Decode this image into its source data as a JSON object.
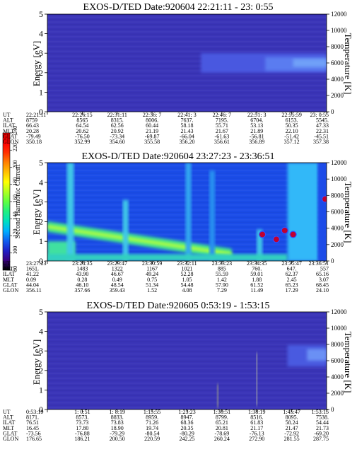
{
  "colorbar": {
    "label": "Second Harmonic Current",
    "ticks": [
      "80",
      "100",
      "120",
      "140",
      "160",
      "180",
      "200",
      "220",
      "240"
    ],
    "min": 80,
    "max": 240,
    "colors": [
      "#000000",
      "#3a0080",
      "#2020c8",
      "#1060f0",
      "#00b0ff",
      "#00e0c0",
      "#20f080",
      "#60ff40",
      "#b0ff20",
      "#ffff00",
      "#ffc000",
      "#ff8000",
      "#ff3000",
      "#ff0000",
      "#e00000"
    ]
  },
  "row_labels": [
    "UT",
    "ALT",
    "ILAT",
    "MLT",
    "GLAT",
    "GLON"
  ],
  "chart_data": [
    {
      "type": "heatmap",
      "title": "EXOS-D/TED   Date:920604  22:21:11 - 23: 0:55",
      "ylabel": "Energy [eV]",
      "ylabel_right": "Temperature [K]",
      "ylim": [
        0,
        5
      ],
      "yticks": [
        "0",
        "1",
        "2",
        "3",
        "4",
        "5"
      ],
      "ylim_right": [
        0,
        12000
      ],
      "yticks_right": [
        "0",
        "2000",
        "4000",
        "6000",
        "8000",
        "10000",
        "12000"
      ],
      "base_color": "#3a34b8",
      "columns": [
        [
          "22:21:11",
          "8759",
          "66.43",
          "20.28",
          "-79.49",
          "350.18"
        ],
        [
          "22:26:15",
          "8565",
          "64.54",
          "20.62",
          "-76.50",
          "352.99"
        ],
        [
          "22:31:11",
          "8315.",
          "62.56",
          "20.92",
          "-73.34",
          "354.60"
        ],
        [
          "22:36: 7",
          "8006.",
          "60.44",
          "21.19",
          "-69.87",
          "355.58"
        ],
        [
          "22:41: 3",
          "7637.",
          "58.18",
          "21.43",
          "-66.04",
          "356.20"
        ],
        [
          "22:46: 7",
          "7195.",
          "55.71",
          "21.67",
          "-61.63",
          "356.61"
        ],
        [
          "22:51: 3",
          "6704.",
          "53.13",
          "21.89",
          "-56.81",
          "356.89"
        ],
        [
          "22:55:59",
          "6153.",
          "50.35",
          "22.10",
          "-51.42",
          "357.12"
        ],
        [
          "23: 0:55",
          "5545.",
          "47.33",
          "22.31",
          "-45.51",
          "357.38"
        ]
      ],
      "features": [
        {
          "kind": "band",
          "x_from": 0.55,
          "x_to": 1.0,
          "e_from": 2.0,
          "e_to": 3.0,
          "color": "#4a58e0"
        },
        {
          "kind": "band",
          "x_from": 0.78,
          "x_to": 1.0,
          "e_from": 2.1,
          "e_to": 2.8,
          "color": "#5a7cf0"
        },
        {
          "kind": "band",
          "x_from": 0.88,
          "x_to": 1.0,
          "e_from": 2.3,
          "e_to": 2.7,
          "color": "#70a0f8"
        }
      ]
    },
    {
      "type": "heatmap",
      "title": "EXOS-D/TED   Date:920604  23:27:23 - 23:36:51",
      "ylabel": "Energy [eV]",
      "ylabel_right": "Temperature [K]",
      "ylim": [
        0,
        5
      ],
      "yticks": [
        "0",
        "1",
        "2",
        "3",
        "4",
        "5"
      ],
      "ylim_right": [
        0,
        12000
      ],
      "yticks_right": [
        "0",
        "2000",
        "4000",
        "6000",
        "8000",
        "10000",
        "12000"
      ],
      "base_color": "#1a4ce8",
      "columns": [
        [
          "23:27:23",
          "1651.",
          "41.22",
          "0.09",
          "44.04",
          "356.11"
        ],
        [
          "23:28:35",
          "1483",
          "43.90",
          "0.28",
          "46.10",
          "357.66"
        ],
        [
          "23:29:47",
          "1322",
          "46.67",
          "0.49",
          "48.54",
          "359.43"
        ],
        [
          "23:30:59",
          "1167",
          "49.24",
          "0.75",
          "51.34",
          "1.52"
        ],
        [
          "23:32:11",
          "1021",
          "52.28",
          "1.05",
          "54.48",
          "4.08"
        ],
        [
          "23:33:23",
          "885",
          "55.59",
          "1.42",
          "57.90",
          "7.29"
        ],
        [
          "23:34:35",
          "760.",
          "59.01",
          "1.88",
          "61.52",
          "11.49"
        ],
        [
          "23:35:47",
          "647.",
          "62.37",
          "2.45",
          "65.23",
          "17.29"
        ],
        [
          "23:36:51",
          "557",
          "65.16",
          "3.07",
          "68.45",
          "24.10"
        ]
      ],
      "features": [
        {
          "kind": "band",
          "x_from": 0.86,
          "x_to": 0.97,
          "e_from": 0.0,
          "e_to": 5.0,
          "color": "#30b8f8"
        },
        {
          "kind": "band",
          "x_from": 0.97,
          "x_to": 1.0,
          "e_from": 0.0,
          "e_to": 5.0,
          "color": "#1a4ce8"
        },
        {
          "kind": "band",
          "x_from": 0.0,
          "x_to": 0.1,
          "e_from": 0.0,
          "e_to": 1.0,
          "color": "#40e0a0"
        },
        {
          "kind": "line",
          "x0": 0.0,
          "e0": 1.75,
          "x1": 0.66,
          "e1": 0.35,
          "width_e": 0.55,
          "color": "#40e090"
        },
        {
          "kind": "line",
          "x0": 0.0,
          "e0": 1.75,
          "x1": 0.66,
          "e1": 0.35,
          "width_e": 0.18,
          "color": "#b0ff40"
        },
        {
          "kind": "band",
          "x_from": 0.07,
          "x_to": 0.095,
          "e_from": 0.0,
          "e_to": 5.0,
          "color": "#40c8e8"
        },
        {
          "kind": "band",
          "x_from": 0.27,
          "x_to": 0.29,
          "e_from": 0.0,
          "e_to": 3.1,
          "color": "#40c8e8"
        },
        {
          "kind": "band",
          "x_from": 0.495,
          "x_to": 0.515,
          "e_from": 0.0,
          "e_to": 5.0,
          "color": "#30a8f0"
        },
        {
          "kind": "band",
          "x_from": 0.58,
          "x_to": 0.6,
          "e_from": 0.0,
          "e_to": 4.6,
          "color": "#2890f0"
        },
        {
          "kind": "band",
          "x_from": 0.75,
          "x_to": 0.77,
          "e_from": 0.0,
          "e_to": 1.6,
          "color": "#40c8e8"
        },
        {
          "kind": "band",
          "x_from": 0.0,
          "x_to": 0.86,
          "e_from": 0.0,
          "e_to": 0.35,
          "color": "#30d0c0"
        },
        {
          "kind": "point",
          "x": 0.77,
          "e": 1.35,
          "color": "#c00030"
        },
        {
          "kind": "point",
          "x": 0.82,
          "e": 1.1,
          "color": "#c00030"
        },
        {
          "kind": "point",
          "x": 0.88,
          "e": 1.35,
          "color": "#c00030"
        },
        {
          "kind": "point",
          "x": 0.85,
          "e": 1.55,
          "color": "#c00030"
        },
        {
          "kind": "point",
          "x": 0.995,
          "e": 3.15,
          "color": "#c00030"
        }
      ]
    },
    {
      "type": "heatmap",
      "title": "EXOS-D/TED   Date:920605  0:53:19 - 1:53:15",
      "ylabel": "Energy [eV]",
      "ylabel_right": "Temperature [K]",
      "ylim": [
        0,
        5
      ],
      "yticks": [
        "0",
        "1",
        "2",
        "3",
        "4",
        "5"
      ],
      "ylim_right": [
        0,
        12000
      ],
      "yticks_right": [
        "0",
        "2000",
        "4000",
        "6000",
        "8000",
        "10000",
        "12000"
      ],
      "base_color": "#3a34b8",
      "columns": [
        [
          "0:53:19",
          "8171.",
          "76.51",
          "16.45",
          "-73.56",
          "176.65"
        ],
        [
          "1: 0:51",
          "8573.",
          "73.73",
          "17.80",
          "-76.88",
          "186.21"
        ],
        [
          "1: 8:19",
          "8833.",
          "73.83",
          "18.90",
          "-79.29",
          "200.50"
        ],
        [
          "1:15:55",
          "8959.",
          "71.26",
          "19.74",
          "-80.54",
          "220.59"
        ],
        [
          "1:23:23",
          "8947.",
          "68.36",
          "20.35",
          "-80.29",
          "242.25"
        ],
        [
          "1:30:51",
          "8799.",
          "65.21",
          "20.81",
          "-78.69",
          "260.24"
        ],
        [
          "1:38:19",
          "8516.",
          "61.83",
          "21.17",
          "-76.13",
          "272.90"
        ],
        [
          "1:45:47",
          "8095.",
          "58.24",
          "21.47",
          "-72.92",
          "281.55"
        ],
        [
          "1:53:15",
          "7538.",
          "54.44",
          "21.73",
          "-69.20",
          "287.75"
        ]
      ],
      "features": [
        {
          "kind": "band",
          "x_from": 0.86,
          "x_to": 1.0,
          "e_from": 2.2,
          "e_to": 3.3,
          "color": "#4a5ae0"
        },
        {
          "kind": "band",
          "x_from": 0.93,
          "x_to": 1.0,
          "e_from": 2.5,
          "e_to": 3.1,
          "color": "#6a90f4"
        },
        {
          "kind": "band",
          "x_from": 0.608,
          "x_to": 0.612,
          "e_from": 0.1,
          "e_to": 1.3,
          "color": "#d8e070"
        },
        {
          "kind": "band",
          "x_from": 0.748,
          "x_to": 0.752,
          "e_from": 0.2,
          "e_to": 2.9,
          "color": "#e8f0a0"
        }
      ]
    }
  ]
}
